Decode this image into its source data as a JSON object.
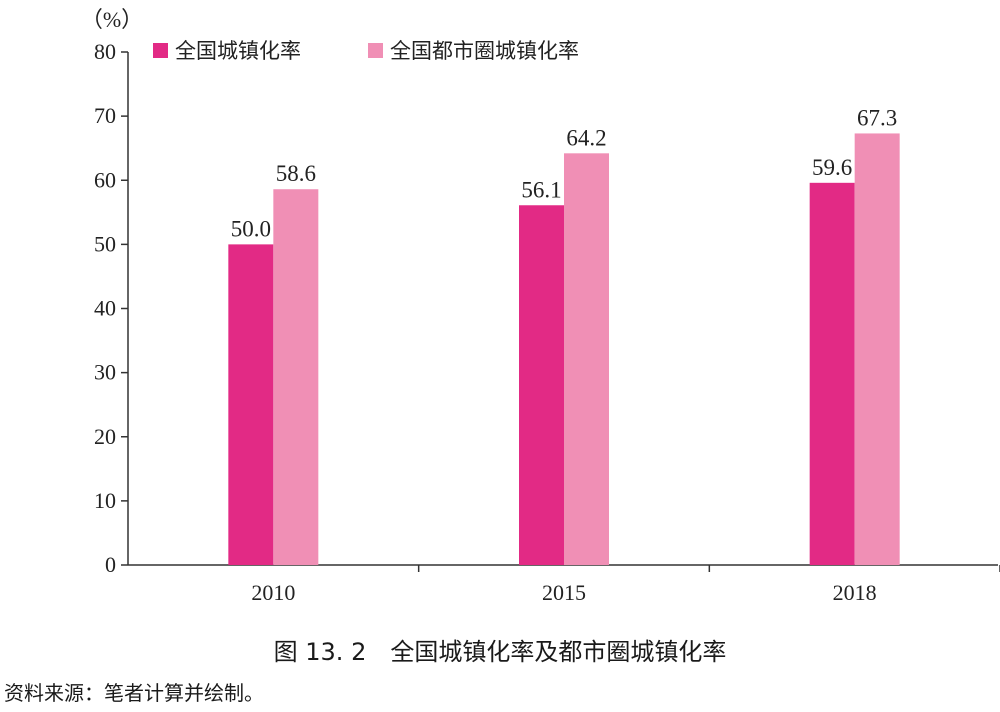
{
  "chart_data": {
    "type": "bar",
    "ylabel": "（%）",
    "ylim": [
      0,
      80
    ],
    "yticks": [
      0,
      10,
      20,
      30,
      40,
      50,
      60,
      70,
      80
    ],
    "categories": [
      "2010",
      "2015",
      "2018"
    ],
    "series": [
      {
        "name": "全国城镇化率",
        "color": "#e22a85",
        "values": [
          50.0,
          56.1,
          59.6
        ],
        "labels": [
          "50.0",
          "56.1",
          "59.6"
        ]
      },
      {
        "name": "全国都市圈城镇化率",
        "color": "#f08fb5",
        "values": [
          58.6,
          64.2,
          67.3
        ],
        "labels": [
          "58.6",
          "64.2",
          "67.3"
        ]
      }
    ],
    "legend_position": "top-left",
    "grid": false
  },
  "caption": "图 13. 2　全国城镇化率及都市圈城镇化率",
  "source": "资料来源：笔者计算并绘制。"
}
